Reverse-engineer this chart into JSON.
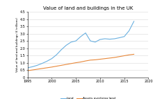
{
  "title": "Value of land and buildings in the UK",
  "ylabel": "Value of land and buildings (£ trillions)",
  "xlim": [
    1995,
    2020
  ],
  "ylim": [
    0,
    4.5
  ],
  "yticks": [
    0,
    0.5,
    1.0,
    1.5,
    2.0,
    2.5,
    3.0,
    3.5,
    4.0,
    4.5
  ],
  "xticks": [
    1995,
    2000,
    2005,
    2010,
    2015,
    2020
  ],
  "land_color": "#6ab0e0",
  "assets_color": "#e8883a",
  "background_color": "#ffffff",
  "land_label": "Land",
  "assets_label": "Assets overlying land",
  "land_x": [
    1995,
    1996,
    1997,
    1998,
    1999,
    2000,
    2001,
    2002,
    2003,
    2004,
    2005,
    2006,
    2007,
    2008,
    2009,
    2010,
    2011,
    2012,
    2013,
    2014,
    2015,
    2016,
    2017
  ],
  "land_y": [
    0.65,
    0.72,
    0.82,
    0.95,
    1.1,
    1.28,
    1.55,
    1.9,
    2.2,
    2.42,
    2.5,
    2.8,
    3.05,
    2.5,
    2.42,
    2.6,
    2.65,
    2.62,
    2.65,
    2.72,
    2.8,
    3.2,
    3.85
  ],
  "assets_x": [
    1995,
    1996,
    1997,
    1998,
    1999,
    2000,
    2001,
    2002,
    2003,
    2004,
    2005,
    2006,
    2007,
    2008,
    2009,
    2010,
    2011,
    2012,
    2013,
    2014,
    2015,
    2016,
    2017
  ],
  "assets_y": [
    0.45,
    0.5,
    0.55,
    0.6,
    0.65,
    0.7,
    0.76,
    0.82,
    0.88,
    0.94,
    1.0,
    1.05,
    1.12,
    1.18,
    1.2,
    1.24,
    1.28,
    1.32,
    1.36,
    1.42,
    1.48,
    1.54,
    1.58
  ]
}
